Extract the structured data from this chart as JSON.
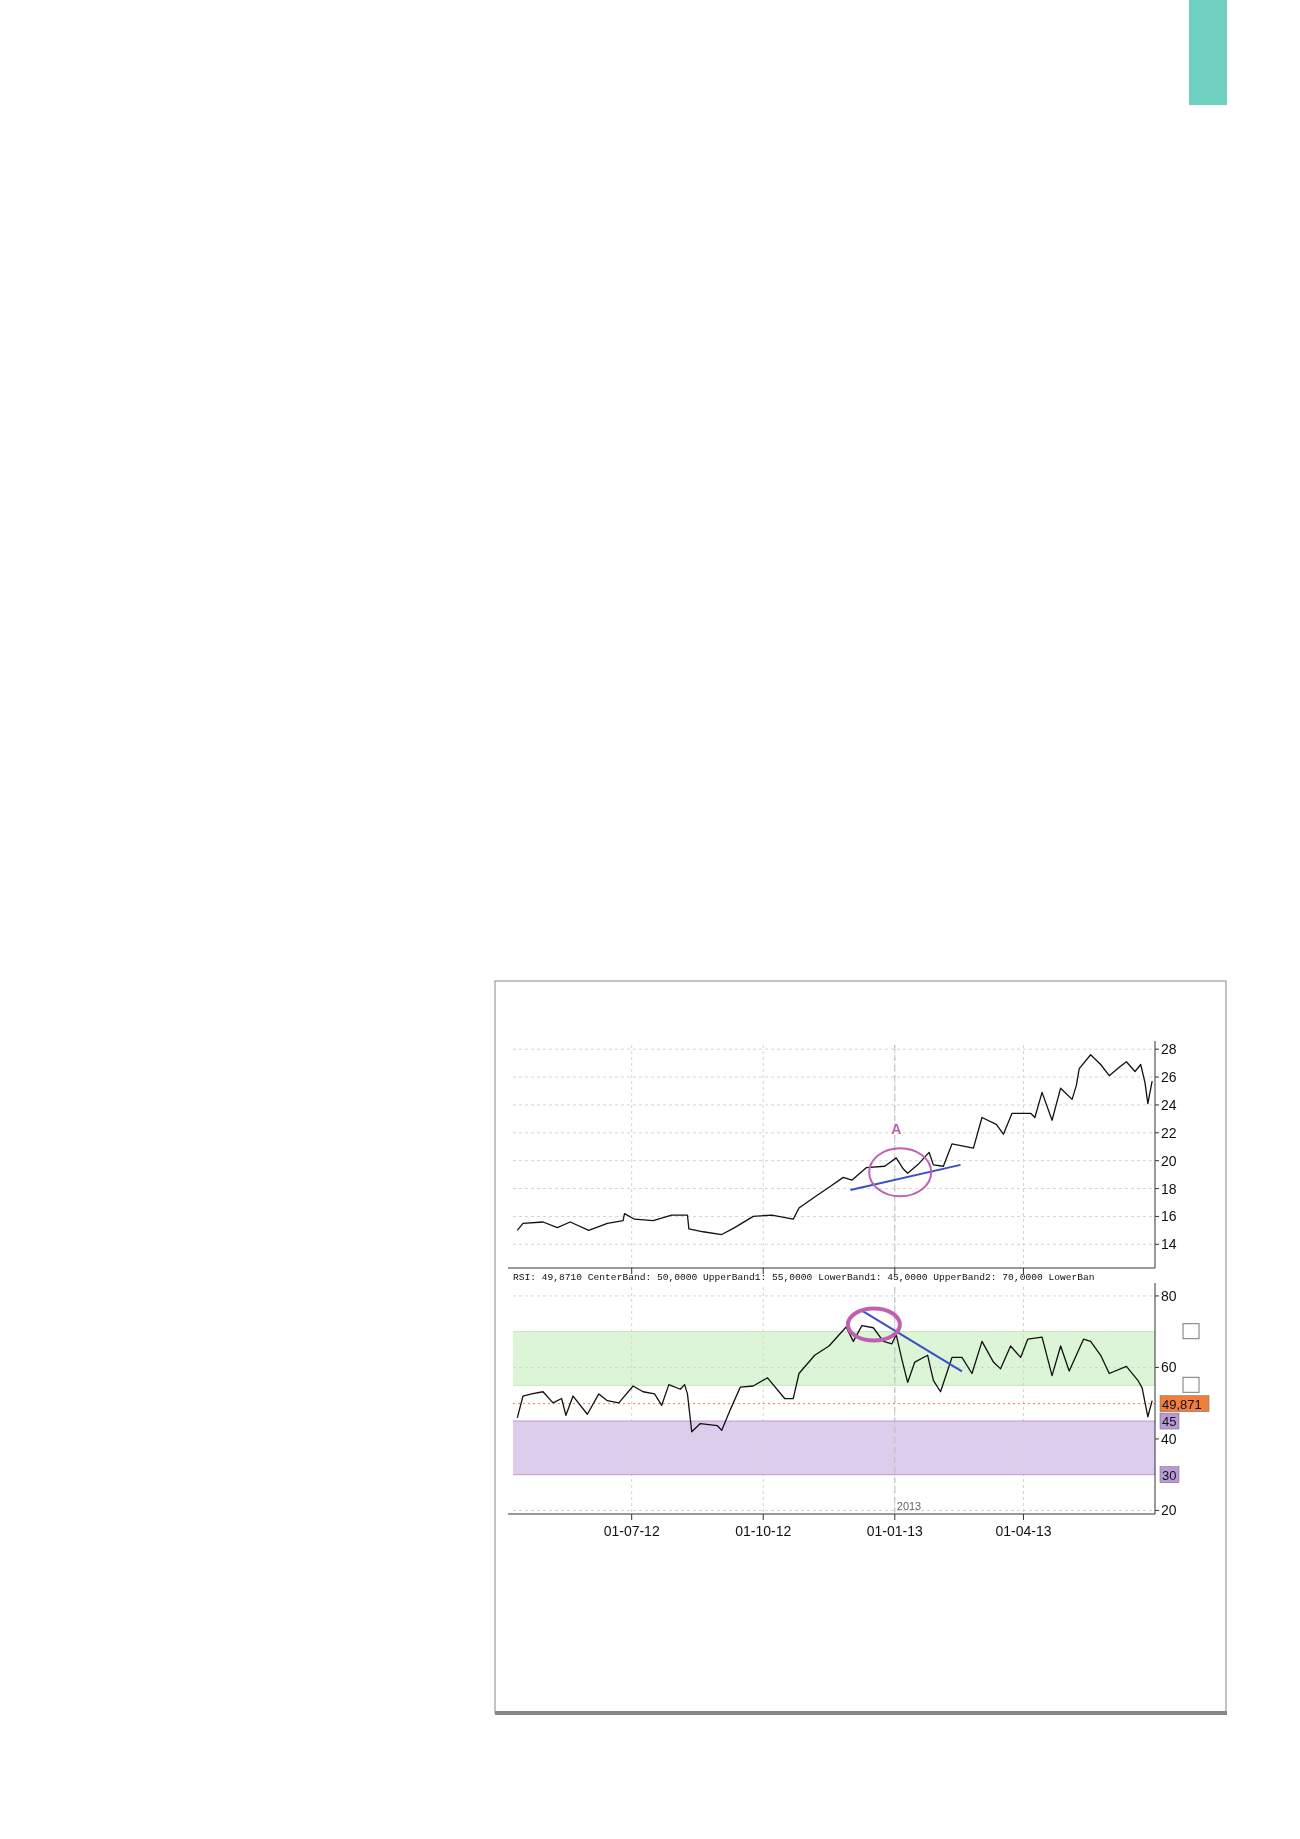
{
  "chart_data": [
    {
      "type": "line",
      "xlim": [
        "2012-04-09",
        "2013-07-02"
      ],
      "xticks": [
        {
          "value": "2012-07-01",
          "label": null
        },
        {
          "value": "2012-10-01",
          "label": null
        },
        {
          "value": "2013-01-01",
          "label": null
        },
        {
          "value": "2013-04-01",
          "label": null
        }
      ],
      "ylim": [
        12.3,
        28.3
      ],
      "yticks": [
        14,
        16,
        18,
        20,
        22,
        24,
        26,
        28
      ],
      "grid": true,
      "tick_labels": "y",
      "line_style": "solid",
      "marker": "none",
      "series": [
        {
          "color": "#111111",
          "x": [
            "2012-04-12",
            "2012-04-16",
            "2012-04-30",
            "2012-05-10",
            "2012-05-19",
            "2012-06-01",
            "2012-06-14",
            "2012-06-25",
            "2012-06-26",
            "2012-07-03",
            "2012-07-16",
            "2012-07-29",
            "2012-08-09",
            "2012-08-10",
            "2012-08-20",
            "2012-09-02",
            "2012-09-11",
            "2012-09-24",
            "2012-10-07",
            "2012-10-22",
            "2012-10-26",
            "2012-11-06",
            "2012-11-16",
            "2012-11-26",
            "2012-12-02",
            "2012-12-12",
            "2012-12-25",
            "2013-01-02",
            "2013-01-07",
            "2013-01-10",
            "2013-01-17",
            "2013-01-25",
            "2013-01-28",
            "2013-02-04",
            "2013-02-10",
            "2013-02-25",
            "2013-03-03",
            "2013-03-13",
            "2013-03-18",
            "2013-03-24",
            "2013-04-06",
            "2013-04-09",
            "2013-04-14",
            "2013-04-21",
            "2013-04-27",
            "2013-05-05",
            "2013-05-08",
            "2013-05-10",
            "2013-05-18",
            "2013-05-25",
            "2013-05-31",
            "2013-06-07",
            "2013-06-12",
            "2013-06-18",
            "2013-06-22",
            "2013-06-25",
            "2013-06-27",
            "2013-06-30"
          ],
          "values": [
            15.0,
            15.5,
            15.6,
            15.2,
            15.6,
            15.0,
            15.5,
            15.7,
            16.2,
            15.8,
            15.7,
            16.1,
            16.1,
            15.1,
            14.9,
            14.7,
            15.2,
            16.0,
            16.1,
            15.8,
            16.6,
            17.4,
            18.1,
            18.8,
            18.6,
            19.5,
            19.6,
            20.2,
            19.4,
            19.1,
            19.7,
            20.6,
            19.7,
            19.6,
            21.2,
            20.9,
            23.1,
            22.6,
            21.9,
            23.4,
            23.4,
            23.1,
            24.9,
            22.9,
            25.2,
            24.4,
            25.4,
            26.6,
            27.6,
            26.9,
            26.1,
            26.7,
            27.1,
            26.4,
            26.9,
            25.6,
            24.1,
            25.7
          ]
        },
        {
          "type": "line",
          "color": "#3a4fc4",
          "x": [
            "2012-12-01",
            "2013-02-16"
          ],
          "values": [
            17.9,
            19.7
          ]
        }
      ],
      "ref_lines": [
        {
          "axis": "x",
          "value": "2013-01-01",
          "label": null,
          "color": "#bbbbbb",
          "line_style": "dashed"
        }
      ],
      "annotations": [
        {
          "text": "A",
          "x": "2013-01-02",
          "y": 21.9
        }
      ]
    },
    {
      "type": "line",
      "title": "RSI: 49,8710 CenterBand: 50,0000 UpperBand1: 55,0000 LowerBand1: 45,0000 UpperBand2: 70,0000 LowerBan",
      "xlim": [
        "2012-04-09",
        "2013-07-02"
      ],
      "xticks": [
        {
          "value": "2012-07-01",
          "label": "01-07-12"
        },
        {
          "value": "2012-10-01",
          "label": "01-10-12"
        },
        {
          "value": "2013-01-01",
          "label": "01-01-13"
        },
        {
          "value": "2013-04-01",
          "label": "01-04-13"
        }
      ],
      "ylim": [
        19,
        82.5
      ],
      "yticks": [
        20,
        40,
        60,
        80
      ],
      "grid": true,
      "line_style": "solid",
      "marker": "none",
      "series": [
        {
          "color": "#111111",
          "x": [
            "2012-04-12",
            "2012-04-16",
            "2012-04-22",
            "2012-04-30",
            "2012-05-07",
            "2012-05-13",
            "2012-05-16",
            "2012-05-21",
            "2012-05-31",
            "2012-06-08",
            "2012-06-14",
            "2012-06-22",
            "2012-07-02",
            "2012-07-09",
            "2012-07-17",
            "2012-07-22",
            "2012-07-27",
            "2012-08-04",
            "2012-08-07",
            "2012-08-09",
            "2012-08-12",
            "2012-08-18",
            "2012-08-30",
            "2012-09-02",
            "2012-09-08",
            "2012-09-15",
            "2012-09-24",
            "2012-10-04",
            "2012-10-16",
            "2012-10-22",
            "2012-10-26",
            "2012-11-06",
            "2012-11-16",
            "2012-11-28",
            "2012-12-03",
            "2012-12-09",
            "2012-12-17",
            "2012-12-24",
            "2012-12-30",
            "2013-01-02",
            "2013-01-06",
            "2013-01-10",
            "2013-01-15",
            "2013-01-24",
            "2013-01-28",
            "2013-02-02",
            "2013-02-10",
            "2013-02-17",
            "2013-02-24",
            "2013-03-03",
            "2013-03-11",
            "2013-03-16",
            "2013-03-23",
            "2013-03-30",
            "2013-04-04",
            "2013-04-14",
            "2013-04-21",
            "2013-04-27",
            "2013-05-03",
            "2013-05-13",
            "2013-05-18",
            "2013-05-25",
            "2013-05-31",
            "2013-06-12",
            "2013-06-20",
            "2013-06-23",
            "2013-06-27",
            "2013-06-30"
          ],
          "values": [
            45.9,
            52.0,
            52.6,
            53.2,
            50.1,
            51.3,
            46.6,
            52.0,
            46.9,
            52.6,
            50.7,
            50.1,
            54.8,
            53.2,
            52.6,
            49.4,
            55.2,
            53.9,
            55.2,
            52.6,
            42.0,
            44.3,
            43.7,
            42.4,
            48.2,
            54.5,
            54.8,
            57.1,
            51.3,
            51.3,
            58.3,
            63.4,
            66.0,
            71.3,
            67.3,
            71.7,
            71.1,
            67.3,
            66.6,
            69.2,
            62.2,
            55.8,
            61.5,
            63.4,
            56.4,
            53.2,
            62.8,
            62.8,
            58.3,
            67.3,
            61.5,
            59.6,
            66.0,
            62.8,
            67.9,
            68.5,
            57.7,
            66.0,
            59.0,
            67.9,
            67.3,
            63.4,
            58.3,
            60.3,
            56.4,
            54.3,
            46.2,
            50.7
          ]
        },
        {
          "type": "line",
          "color": "#3a4fc4",
          "x": [
            "2012-12-09",
            "2013-02-17"
          ],
          "values": [
            75.9,
            58.9
          ]
        }
      ],
      "bands": [
        {
          "axis": "y",
          "from": 55,
          "to": 70,
          "color": "#dcf5d6"
        },
        {
          "axis": "y",
          "from": 30,
          "to": 45,
          "color": "#ddcdec"
        }
      ],
      "ref_lines": [
        {
          "axis": "y",
          "value": 49.871,
          "label": "49,871",
          "color": "#f07f3c",
          "line_style": "dotted"
        },
        {
          "axis": "y",
          "value": 45,
          "label": "45",
          "color": "#b99ad6"
        },
        {
          "axis": "y",
          "value": 30,
          "label": "30",
          "color": "#b99ad6"
        },
        {
          "axis": "y",
          "value": 70,
          "label": null,
          "color": "#bfe8b4"
        },
        {
          "axis": "y",
          "value": 55,
          "label": null,
          "color": "#bfe8b4"
        },
        {
          "axis": "x",
          "value": "2013-01-01",
          "label": "2013",
          "color": "#bbbbbb",
          "line_style": "dashed"
        }
      ]
    }
  ]
}
